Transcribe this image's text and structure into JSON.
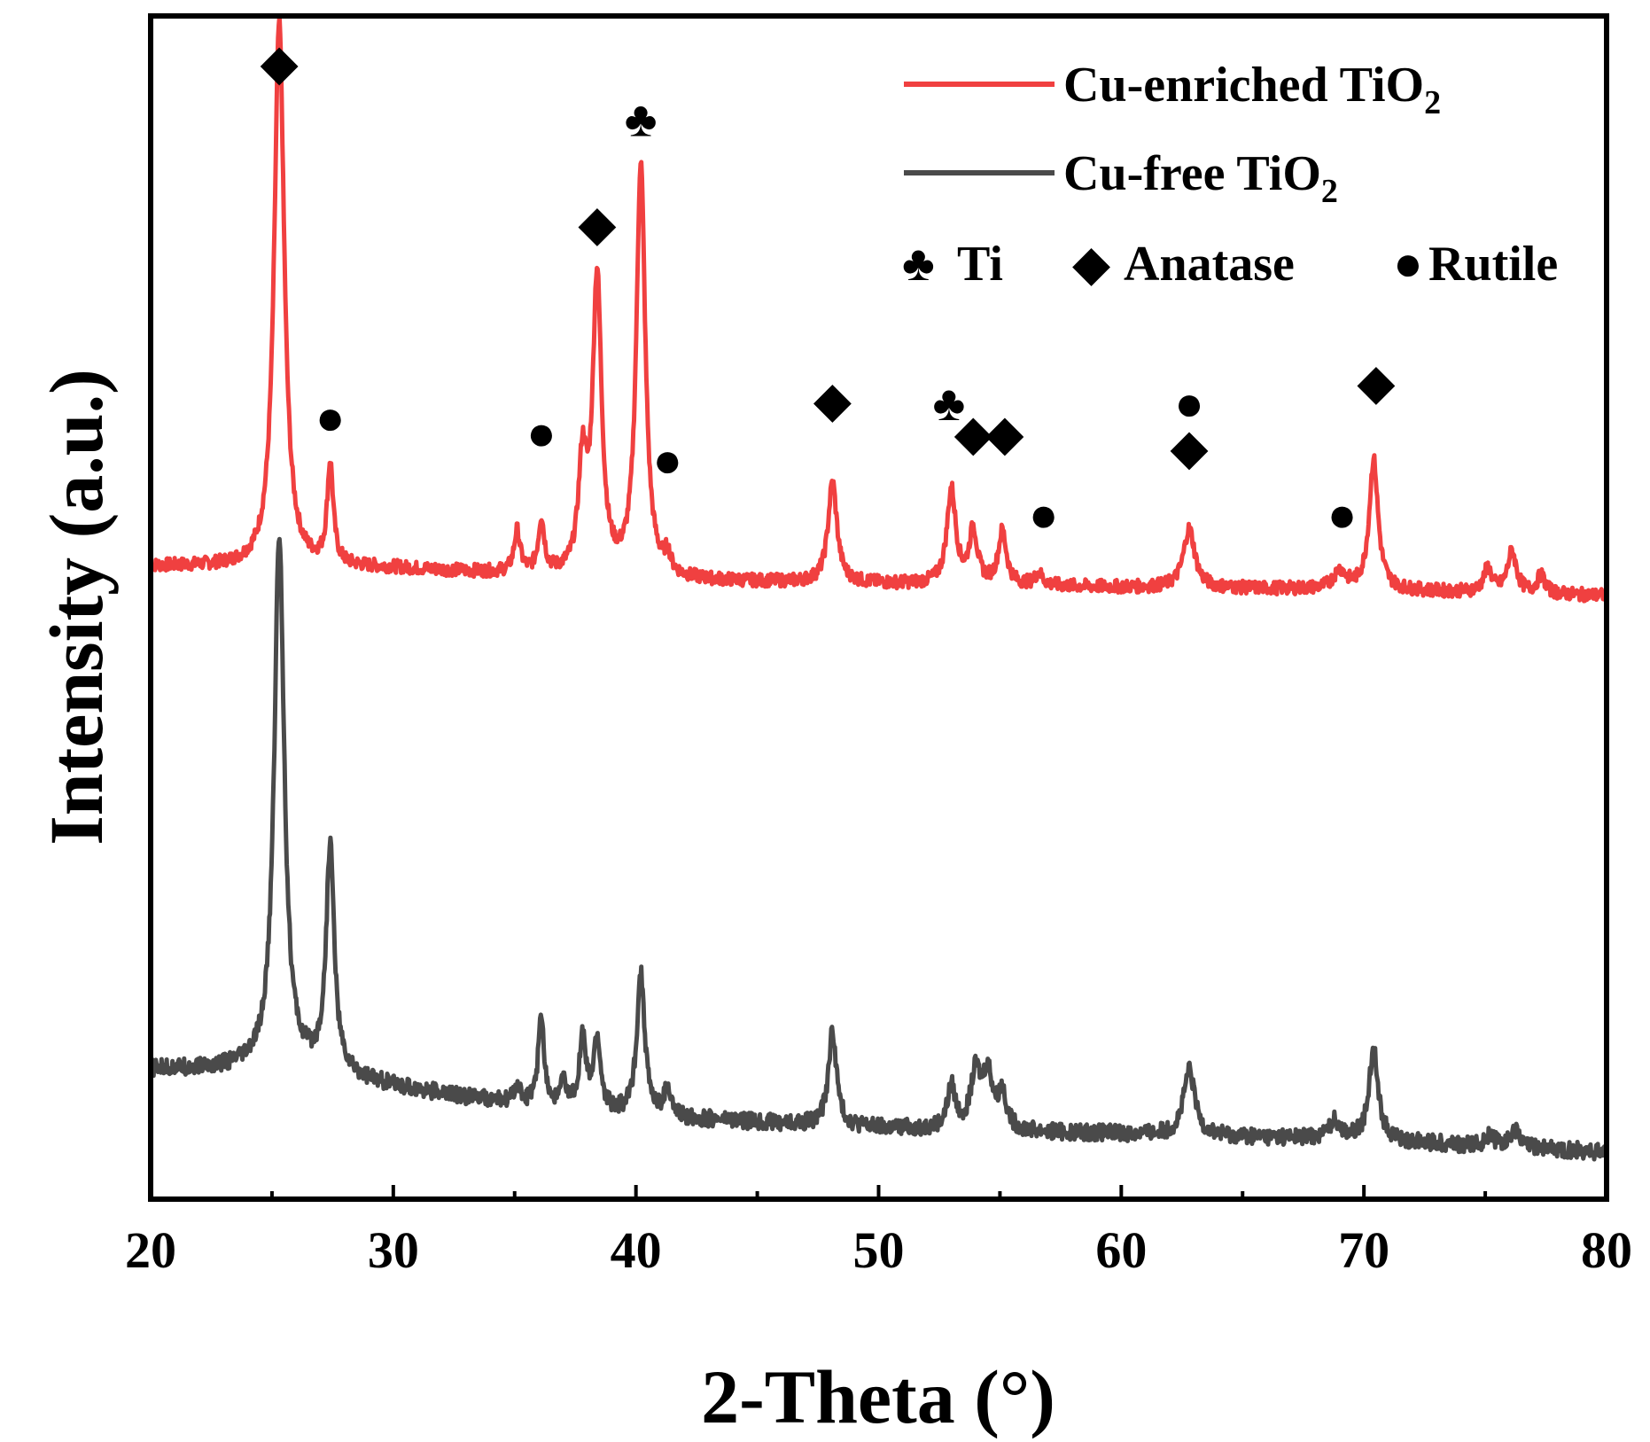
{
  "chart_data": {
    "type": "line",
    "title": "",
    "xlabel": "2-Theta (°)",
    "ylabel": "Intensity (a.u.)",
    "xlim": [
      20,
      80
    ],
    "ylim": [
      0,
      100
    ],
    "x_ticks": [
      "20",
      "30",
      "40",
      "50",
      "60",
      "70",
      "80"
    ],
    "grid": false,
    "legend_position": "top-right",
    "series": [
      {
        "name": "Cu-enriched TiO",
        "subscript": "2",
        "color": "#f04040",
        "baseline": [
          [
            20,
            53.5
          ],
          [
            30,
            53.3
          ],
          [
            40,
            52.3
          ],
          [
            50,
            52.0
          ],
          [
            60,
            51.7
          ],
          [
            70,
            51.5
          ],
          [
            80,
            51.0
          ]
        ],
        "peaks": [
          [
            25.3,
            46.0,
            0.25
          ],
          [
            27.4,
            8.5,
            0.15
          ],
          [
            35.1,
            3.5,
            0.15
          ],
          [
            36.1,
            4.5,
            0.15
          ],
          [
            37.8,
            9.0,
            0.2
          ],
          [
            38.4,
            25.0,
            0.22
          ],
          [
            40.2,
            35.0,
            0.22
          ],
          [
            41.3,
            1.5,
            0.15
          ],
          [
            48.1,
            8.5,
            0.22
          ],
          [
            53.0,
            8.0,
            0.22
          ],
          [
            53.9,
            4.5,
            0.2
          ],
          [
            55.1,
            4.5,
            0.2
          ],
          [
            56.6,
            1.0,
            0.2
          ],
          [
            62.8,
            5.0,
            0.28
          ],
          [
            69.0,
            1.5,
            0.3
          ],
          [
            70.4,
            11.0,
            0.22
          ],
          [
            75.1,
            2.0,
            0.2
          ],
          [
            76.1,
            3.5,
            0.22
          ],
          [
            77.3,
            1.5,
            0.2
          ]
        ]
      },
      {
        "name": "Cu-free TiO",
        "subscript": "2",
        "color": "#4a4a4a",
        "baseline": [
          [
            20,
            11.0
          ],
          [
            25,
            11.0
          ],
          [
            27,
            10.8
          ],
          [
            30,
            9.5
          ],
          [
            35,
            8.0
          ],
          [
            40,
            7.0
          ],
          [
            50,
            6.0
          ],
          [
            60,
            5.5
          ],
          [
            70,
            5.0
          ],
          [
            80,
            4.0
          ]
        ],
        "peaks": [
          [
            25.3,
            45.0,
            0.25
          ],
          [
            27.4,
            19.0,
            0.2
          ],
          [
            35.1,
            1.5,
            0.15
          ],
          [
            36.1,
            7.5,
            0.15
          ],
          [
            37.0,
            2.0,
            0.15
          ],
          [
            37.8,
            6.0,
            0.17
          ],
          [
            38.4,
            6.0,
            0.17
          ],
          [
            40.2,
            12.0,
            0.2
          ],
          [
            41.3,
            2.5,
            0.15
          ],
          [
            48.1,
            8.0,
            0.2
          ],
          [
            53.0,
            3.5,
            0.2
          ],
          [
            54.0,
            4.5,
            0.25
          ],
          [
            54.5,
            4.5,
            0.25
          ],
          [
            55.1,
            3.0,
            0.2
          ],
          [
            62.8,
            5.5,
            0.28
          ],
          [
            68.8,
            1.5,
            0.3
          ],
          [
            70.4,
            8.0,
            0.22
          ],
          [
            75.2,
            1.0,
            0.2
          ],
          [
            76.2,
            1.5,
            0.2
          ]
        ]
      }
    ],
    "phase_legend": [
      {
        "symbol": "♣",
        "label": "Ti"
      },
      {
        "symbol": "◆",
        "label": "Anatase"
      },
      {
        "symbol": "●",
        "label": "Rutile"
      }
    ],
    "annotations": [
      {
        "symbol": "◆",
        "x": 25.3,
        "y": 96
      },
      {
        "symbol": "●",
        "x": 27.4,
        "y": 66
      },
      {
        "symbol": "●",
        "x": 36.1,
        "y": 64.7
      },
      {
        "symbol": "◆",
        "x": 38.4,
        "y": 82.4
      },
      {
        "symbol": "♣",
        "x": 40.2,
        "y": 91.2
      },
      {
        "symbol": "●",
        "x": 41.3,
        "y": 62.4
      },
      {
        "symbol": "◆",
        "x": 48.1,
        "y": 67.5
      },
      {
        "symbol": "♣",
        "x": 52.9,
        "y": 67.2
      },
      {
        "symbol": "◆",
        "x": 53.9,
        "y": 64.7
      },
      {
        "symbol": "◆",
        "x": 55.2,
        "y": 64.7
      },
      {
        "symbol": "●",
        "x": 56.8,
        "y": 57.8
      },
      {
        "symbol": "●",
        "x": 62.8,
        "y": 67.2
      },
      {
        "symbol": "◆",
        "x": 62.8,
        "y": 63.5
      },
      {
        "symbol": "●",
        "x": 69.1,
        "y": 57.8
      },
      {
        "symbol": "◆",
        "x": 70.5,
        "y": 69.0
      }
    ]
  }
}
